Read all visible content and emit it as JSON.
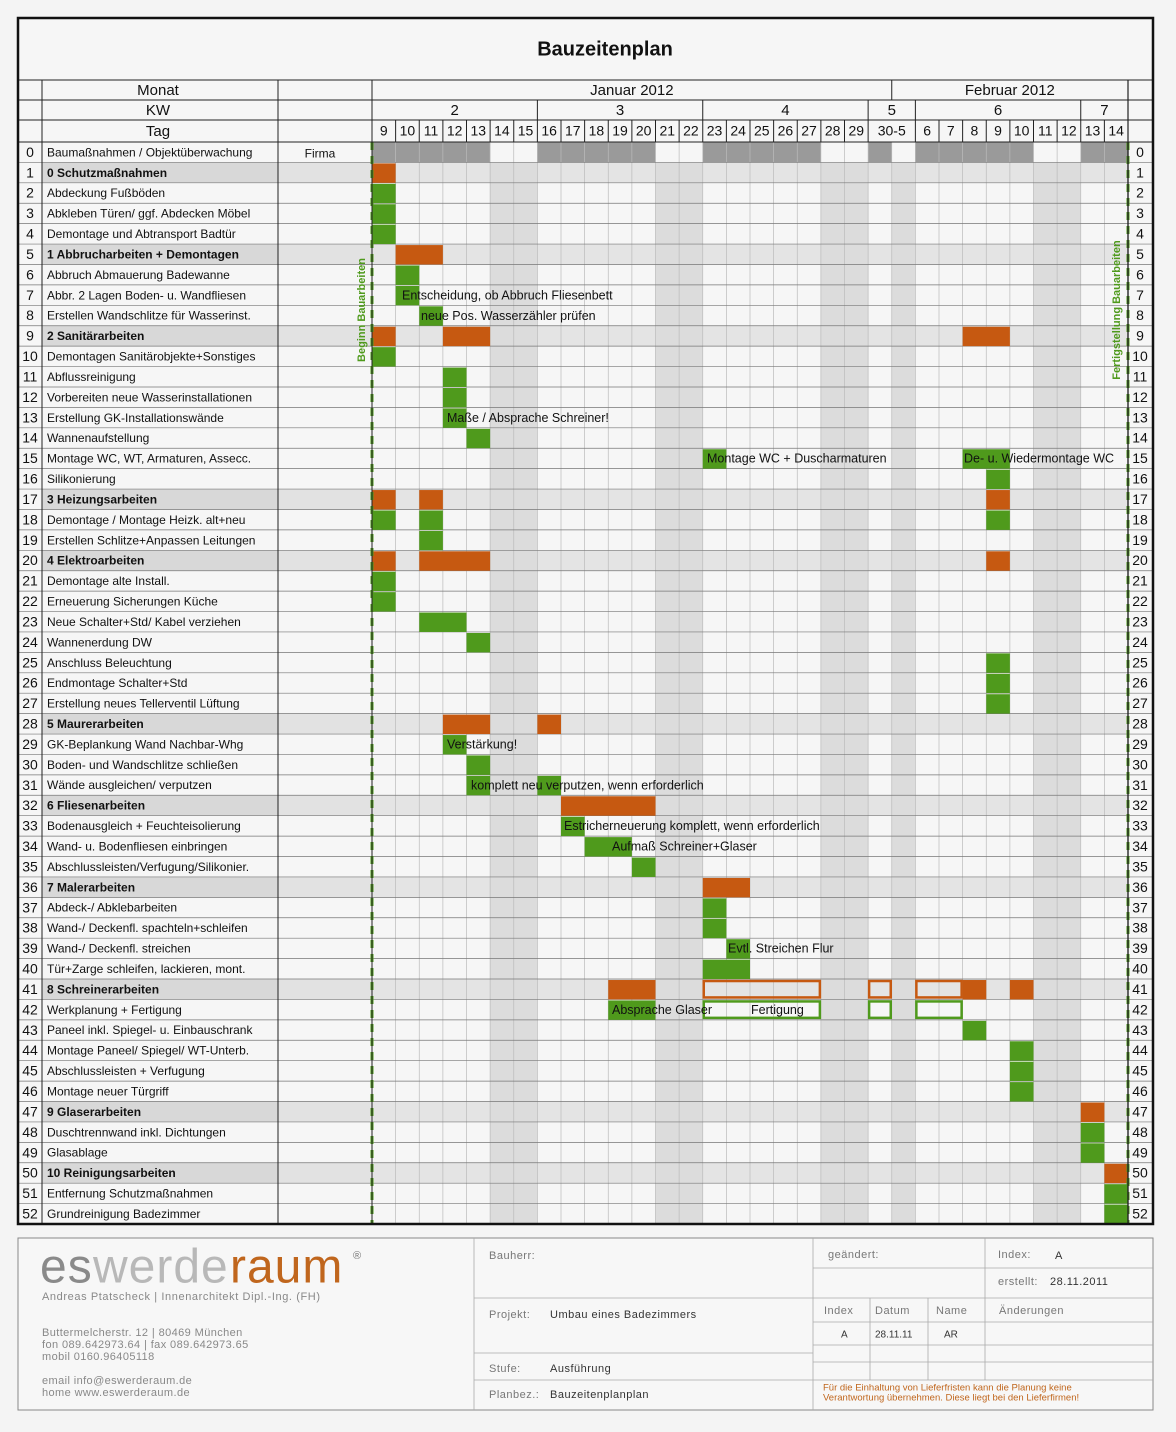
{
  "title": "Bauzeitenplan",
  "header": {
    "monat": "Monat",
    "kw": "KW",
    "tag": "Tag",
    "months": [
      "Januar 2012",
      "Februar 2012"
    ],
    "weeks": [
      "2",
      "3",
      "4",
      "5",
      "6",
      "7"
    ],
    "days": [
      "9",
      "10",
      "11",
      "12",
      "13",
      "14",
      "15",
      "16",
      "17",
      "18",
      "19",
      "20",
      "21",
      "22",
      "23",
      "24",
      "25",
      "26",
      "27",
      "28",
      "29",
      "30-5",
      "6",
      "7",
      "8",
      "9",
      "10",
      "11",
      "12",
      "13",
      "14"
    ]
  },
  "rows": [
    {
      "nr": "0",
      "task": "Baumaßnahmen / Objektüberwachung",
      "firma": "Firma"
    },
    {
      "nr": "1",
      "task": "0 Schutzmaßnahmen"
    },
    {
      "nr": "2",
      "task": "Abdeckung Fußböden"
    },
    {
      "nr": "3",
      "task": "Abkleben Türen/ ggf. Abdecken Möbel"
    },
    {
      "nr": "4",
      "task": "Demontage und Abtransport Badtür"
    },
    {
      "nr": "5",
      "task": "1 Abbrucharbeiten + Demontagen"
    },
    {
      "nr": "6",
      "task": "Abbruch Abmauerung Badewanne"
    },
    {
      "nr": "7",
      "task": "Abbr. 2 Lagen Boden- u. Wandfliesen"
    },
    {
      "nr": "8",
      "task": "Erstellen Wandschlitze für Wasserinst."
    },
    {
      "nr": "9",
      "task": "2 Sanitärarbeiten"
    },
    {
      "nr": "10",
      "task": "Demontagen Sanitärobjekte+Sonstiges"
    },
    {
      "nr": "11",
      "task": "Abflussreinigung"
    },
    {
      "nr": "12",
      "task": "Vorbereiten neue Wasserinstallationen"
    },
    {
      "nr": "13",
      "task": "Erstellung GK-Installationswände"
    },
    {
      "nr": "14",
      "task": "Wannenaufstellung"
    },
    {
      "nr": "15",
      "task": "Montage WC, WT, Armaturen, Assecc."
    },
    {
      "nr": "16",
      "task": "Silikonierung"
    },
    {
      "nr": "17",
      "task": "3 Heizungsarbeiten"
    },
    {
      "nr": "18",
      "task": "Demontage / Montage Heizk. alt+neu"
    },
    {
      "nr": "19",
      "task": "Erstellen Schlitze+Anpassen Leitungen"
    },
    {
      "nr": "20",
      "task": "4 Elektroarbeiten"
    },
    {
      "nr": "21",
      "task": "Demontage alte Install."
    },
    {
      "nr": "22",
      "task": "Erneuerung Sicherungen Küche"
    },
    {
      "nr": "23",
      "task": "Neue Schalter+Std/ Kabel verziehen"
    },
    {
      "nr": "24",
      "task": "Wannenerdung DW"
    },
    {
      "nr": "25",
      "task": "Anschluss Beleuchtung"
    },
    {
      "nr": "26",
      "task": "Endmontage Schalter+Std"
    },
    {
      "nr": "27",
      "task": "Erstellung neues  Tellerventil Lüftung"
    },
    {
      "nr": "28",
      "task": "5 Maurerarbeiten"
    },
    {
      "nr": "29",
      "task": "GK-Beplankung Wand Nachbar-Whg"
    },
    {
      "nr": "30",
      "task": "Boden- und Wandschlitze schließen"
    },
    {
      "nr": "31",
      "task": "Wände ausgleichen/ verputzen"
    },
    {
      "nr": "32",
      "task": "6 Fliesenarbeiten"
    },
    {
      "nr": "33",
      "task": "Bodenausgleich + Feuchteisolierung"
    },
    {
      "nr": "34",
      "task": "Wand- u. Bodenfliesen einbringen"
    },
    {
      "nr": "35",
      "task": "Abschlussleisten/Verfugung/Silikonier."
    },
    {
      "nr": "36",
      "task": "7 Malerarbeiten"
    },
    {
      "nr": "37",
      "task": "Abdeck-/ Abklebarbeiten"
    },
    {
      "nr": "38",
      "task": "Wand-/ Deckenfl. spachteln+schleifen"
    },
    {
      "nr": "39",
      "task": "Wand-/ Deckenfl. streichen"
    },
    {
      "nr": "40",
      "task": "Tür+Zarge schleifen, lackieren, mont."
    },
    {
      "nr": "41",
      "task": "8 Schreinerarbeiten"
    },
    {
      "nr": "42",
      "task": "Werkplanung + Fertigung"
    },
    {
      "nr": "43",
      "task": "Paneel inkl. Spiegel- u. Einbauschrank"
    },
    {
      "nr": "44",
      "task": "Montage Paneel/ Spiegel/ WT-Unterb."
    },
    {
      "nr": "45",
      "task": "Abschlussleisten + Verfugung"
    },
    {
      "nr": "46",
      "task": "Montage neuer Türgriff"
    },
    {
      "nr": "47",
      "task": "9 Glaserarbeiten"
    },
    {
      "nr": "48",
      "task": "Duschtrennwand inkl. Dichtungen"
    },
    {
      "nr": "49",
      "task": "Glasablage"
    },
    {
      "nr": "50",
      "task": "10 Reinigungsarbeiten"
    },
    {
      "nr": "51",
      "task": "Entfernung Schutzmaßnahmen"
    },
    {
      "nr": "52",
      "task": "Grundreinigung Badezimmer"
    }
  ],
  "annotations": [
    "Entscheidung, ob Abbruch Fliesenbett",
    "neue Pos. Wasserzähler prüfen",
    "Maße / Absprache Schreiner!",
    "Montage WC + Duscharmaturen",
    "De- u. Wiedermontage WC",
    "Verstärkung!",
    "komplett neu verputzen, wenn erforderlich",
    "Estricherneuerung komplett, wenn erforderlich",
    "Aufmaß Schreiner+Glaser",
    "Evtl. Streichen Flur",
    "Absprache Glaser",
    "Fertigung"
  ],
  "milestones": [
    "Beginn Bauarbeiten",
    "Fertigstellung Bauarbeiten"
  ],
  "footer": {
    "logo": [
      "es",
      "werde",
      "raum",
      "®"
    ],
    "owner": "Andreas Ptatscheck  |  Innenarchitekt  Dipl.-Ing. (FH)",
    "address": [
      "Buttermelcherstr. 12  |  80469 München",
      "fon 089.642973.64  |  fax 089.642973.65",
      "mobil 0160.96405118"
    ],
    "web": [
      "email info@eswerderaum.de",
      "home www.eswerderaum.de"
    ],
    "bauherr": "Bauherr:",
    "projekt_label": "Projekt:",
    "projekt": "Umbau eines Badezimmers",
    "stufe_label": "Stufe:",
    "stufe": "Ausführung",
    "planbez_label": "Planbez.:",
    "planbez": "Bauzeitenplanplan",
    "geaendert": "geändert:",
    "index_label": "Index:",
    "index": "A",
    "erstellt_label": "erstellt:",
    "erstellt": "28.11.2011",
    "table_head": [
      "Index",
      "Datum",
      "Name",
      "Änderungen"
    ],
    "table_row": [
      "A",
      "28.11.11",
      "AR"
    ],
    "note": [
      "Für die Einhaltung von Lieferfristen kann die Planung keine",
      "Verantwortung übernehmen. Diese liegt bei den Lieferfirmen!"
    ]
  }
}
